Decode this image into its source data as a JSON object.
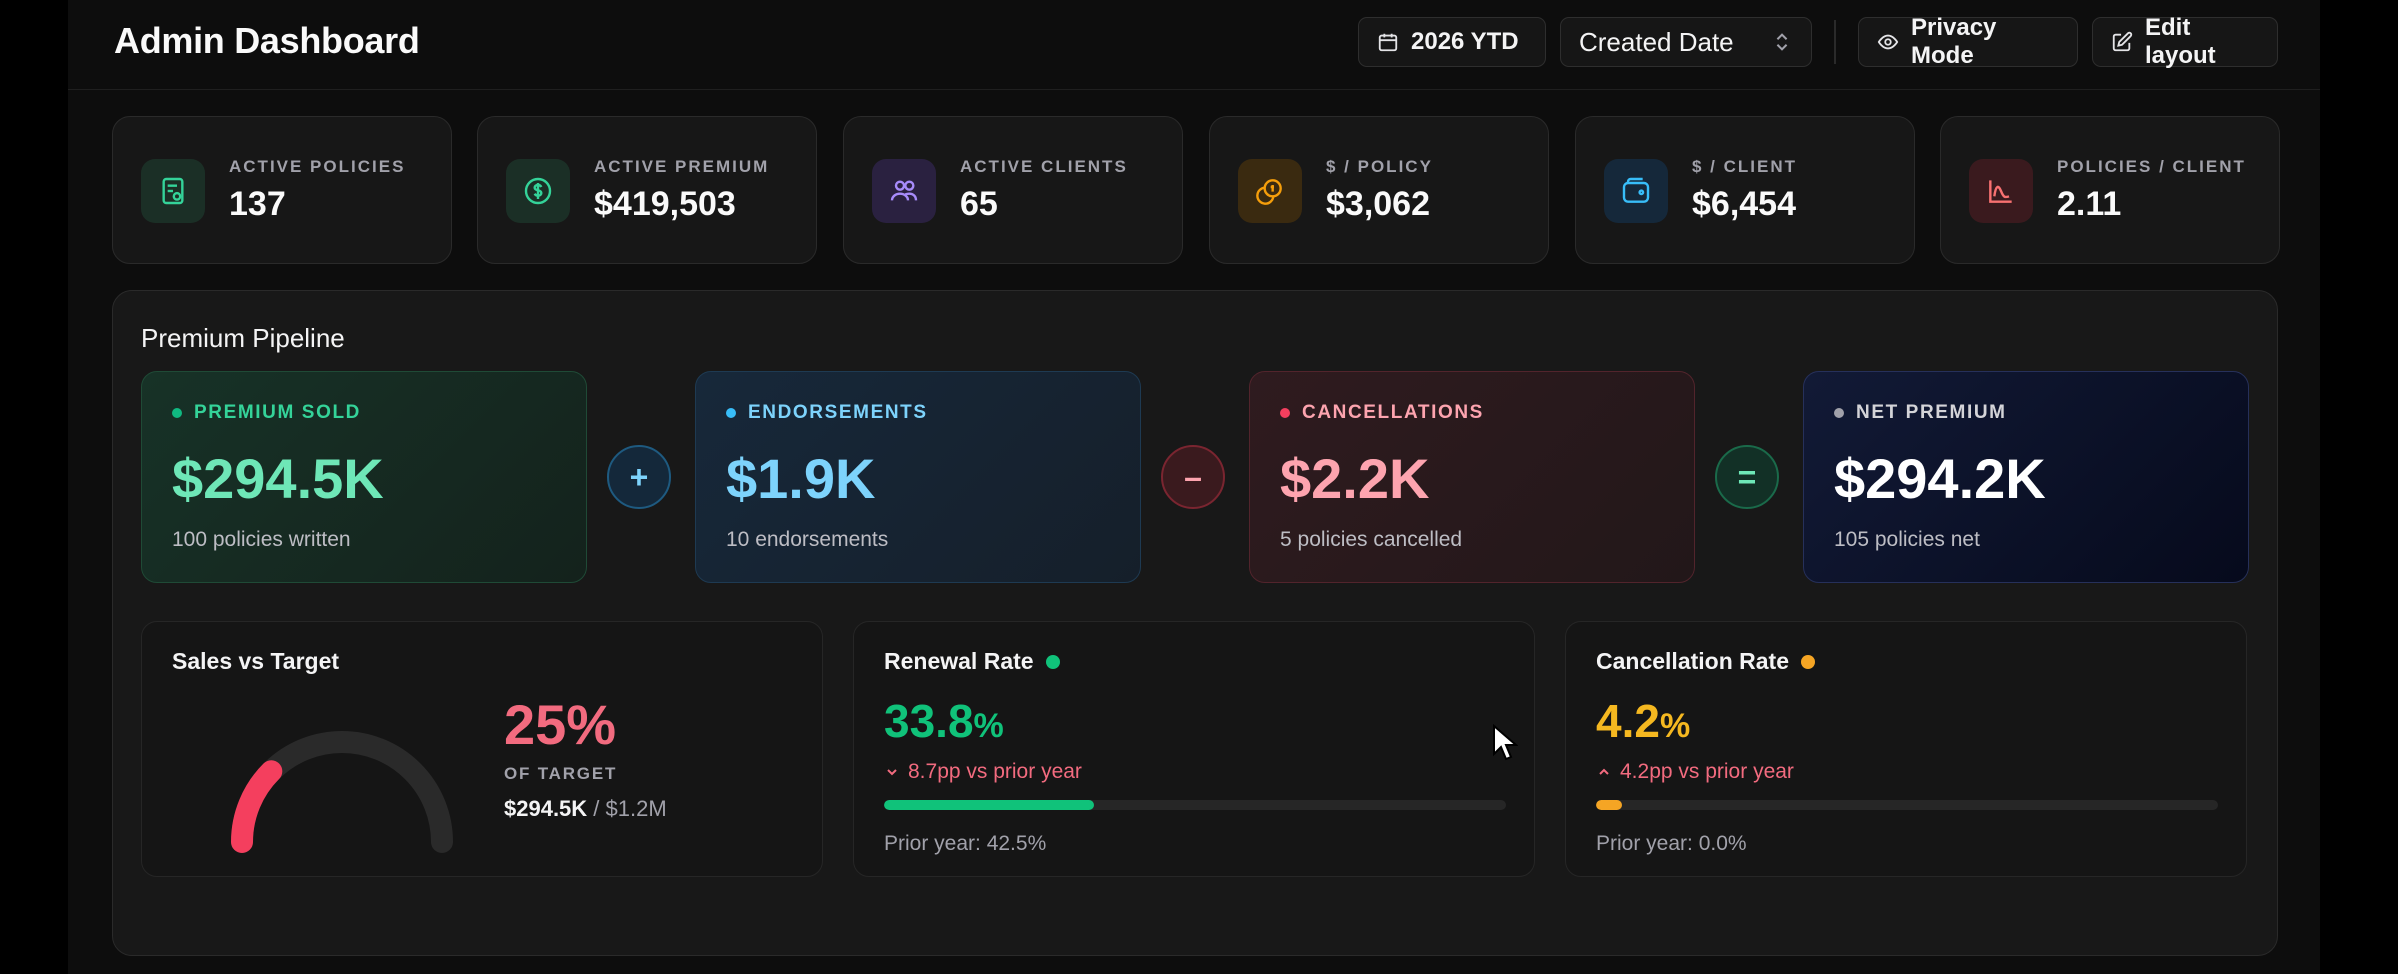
{
  "header": {
    "title": "Admin Dashboard",
    "date_range": "2026 YTD",
    "sort_select": "Created Date",
    "privacy_label": "Privacy Mode",
    "edit_label": "Edit layout"
  },
  "stats": [
    {
      "label": "ACTIVE POLICIES",
      "value": "137",
      "icon": "policy-icon",
      "color": "#34d399"
    },
    {
      "label": "ACTIVE PREMIUM",
      "value": "$419,503",
      "icon": "dollar-circle-icon",
      "color": "#34d399"
    },
    {
      "label": "ACTIVE CLIENTS",
      "value": "65",
      "icon": "users-icon",
      "color": "#a78bfa"
    },
    {
      "label": "$ / POLICY",
      "value": "$3,062",
      "icon": "coins-icon",
      "color": "#f59e0b"
    },
    {
      "label": "$ / CLIENT",
      "value": "$6,454",
      "icon": "wallet-icon",
      "color": "#38bdf8"
    },
    {
      "label": "POLICIES / CLIENT",
      "value": "2.11",
      "icon": "chart-curve-icon",
      "color": "#f87171"
    }
  ],
  "pipeline": {
    "title": "Premium Pipeline",
    "operators": [
      "+",
      "–",
      "="
    ],
    "cards": [
      {
        "label": "PREMIUM SOLD",
        "value": "$294.5K",
        "sub": "100 policies written",
        "color": "#34d399"
      },
      {
        "label": "ENDORSEMENTS",
        "value": "$1.9K",
        "sub": "10 endorsements",
        "color": "#7dd3fc"
      },
      {
        "label": "CANCELLATIONS",
        "value": "$2.2K",
        "sub": "5 policies cancelled",
        "color": "#fda4af"
      },
      {
        "label": "NET PREMIUM",
        "value": "$294.2K",
        "sub": "105 policies net",
        "color": "#ffffff"
      }
    ]
  },
  "sales_vs_target": {
    "title": "Sales vs Target",
    "percent": "25%",
    "percent_value": 0.25,
    "label": "OF TARGET",
    "current": "$294.5K",
    "target": " / $1.2M"
  },
  "renewal_rate": {
    "title": "Renewal Rate",
    "value": "33.8",
    "unit": "%",
    "change": "8.7pp vs prior year",
    "progress": 0.338,
    "prior": "Prior year: 42.5%",
    "color": "#10c27a"
  },
  "cancellation_rate": {
    "title": "Cancellation Rate",
    "value": "4.2",
    "unit": "%",
    "change": "4.2pp vs prior year",
    "progress": 0.042,
    "prior": "Prior year: 0.0%",
    "color": "#f5a524"
  }
}
